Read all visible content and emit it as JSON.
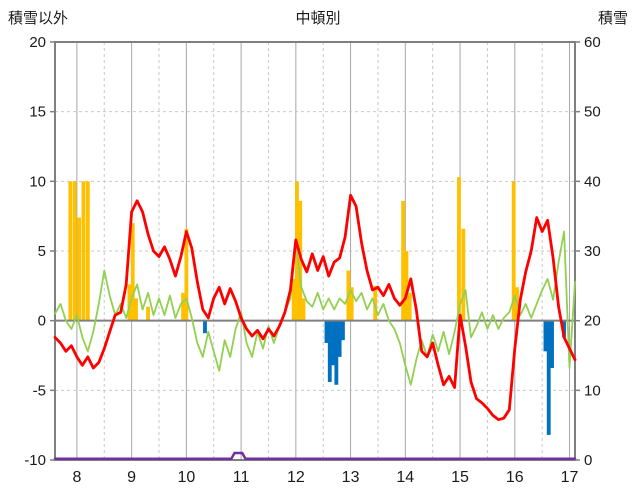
{
  "chart_data": {
    "type": "line",
    "title": "中頓別",
    "left_axis": {
      "label": "積雪以外",
      "min": -10,
      "max": 20,
      "ticks": [
        20,
        15,
        10,
        5,
        0,
        -5,
        -10
      ]
    },
    "right_axis": {
      "label": "積雪",
      "min": 0,
      "max": 60,
      "ticks": [
        60,
        50,
        40,
        30,
        20,
        10,
        0
      ]
    },
    "x_axis": {
      "min": 7.6,
      "max": 17.1,
      "ticks": [
        8,
        9,
        10,
        11,
        12,
        13,
        14,
        15,
        16,
        17
      ],
      "labels": [
        "8",
        "9",
        "10",
        "11",
        "12",
        "13",
        "14",
        "15",
        "16",
        "17"
      ],
      "minor_ticks": [
        8.5,
        9.5,
        10.5,
        11.5,
        12.5,
        13.5,
        14.5,
        15.5,
        16.5
      ]
    },
    "style": {
      "grid_major": "#A6A6A6",
      "grid_minor": "#C9C9C9",
      "zero_line": "#808080",
      "frame": "#7F7F7F",
      "text": "#1A1A1A",
      "background": "#FFFFFF"
    },
    "bar_width": 0.07,
    "series": [
      {
        "name": "orange-bars",
        "type": "bar",
        "color": "#FFC000",
        "points": [
          [
            7.88,
            10
          ],
          [
            7.96,
            10
          ],
          [
            8.04,
            7.4
          ],
          [
            8.12,
            10
          ],
          [
            8.2,
            10
          ],
          [
            8.96,
            2.6
          ],
          [
            9.02,
            7.0
          ],
          [
            9.08,
            1.6
          ],
          [
            9.3,
            1.0
          ],
          [
            9.94,
            2.0
          ],
          [
            10.0,
            6.6
          ],
          [
            11.96,
            3.0
          ],
          [
            12.02,
            10
          ],
          [
            12.08,
            8.6
          ],
          [
            12.14,
            1.6
          ],
          [
            12.96,
            3.6
          ],
          [
            13.02,
            2.4
          ],
          [
            13.45,
            2.5
          ],
          [
            13.96,
            8.6
          ],
          [
            14.02,
            5.0
          ],
          [
            14.08,
            2.0
          ],
          [
            14.98,
            10.3
          ],
          [
            15.06,
            6.6
          ],
          [
            15.98,
            10.0
          ],
          [
            16.04,
            2.4
          ]
        ]
      },
      {
        "name": "blue-bars",
        "type": "bar",
        "color": "#0070C0",
        "points": [
          [
            10.34,
            -0.9
          ],
          [
            12.56,
            -1.6
          ],
          [
            12.62,
            -4.4
          ],
          [
            12.68,
            -3.2
          ],
          [
            12.74,
            -4.6
          ],
          [
            12.8,
            -2.6
          ],
          [
            12.86,
            -1.4
          ],
          [
            16.56,
            -2.2
          ],
          [
            16.62,
            -8.2
          ],
          [
            16.68,
            -3.4
          ],
          [
            16.9,
            -1.2
          ]
        ]
      },
      {
        "name": "green-line",
        "type": "line",
        "color": "#92D050",
        "width": 1.8,
        "x_start": 7.6,
        "x_step": 0.1,
        "values": [
          0.5,
          1.2,
          0.0,
          -0.6,
          0.4,
          -1.2,
          -2.2,
          -0.8,
          1.2,
          3.6,
          1.8,
          0.4,
          1.2,
          0.2,
          1.6,
          2.6,
          0.8,
          2.0,
          0.4,
          1.6,
          0.4,
          1.8,
          0.2,
          1.2,
          1.6,
          0.2,
          -1.6,
          -2.6,
          -0.8,
          -2.2,
          -3.6,
          -1.4,
          -2.6,
          -0.6,
          0.6,
          -1.6,
          -2.6,
          -0.8,
          -2.0,
          -0.4,
          -1.6,
          -0.4,
          0.6,
          1.6,
          5.6,
          2.4,
          1.4,
          1.0,
          2.0,
          0.8,
          1.6,
          0.8,
          1.6,
          1.2,
          2.2,
          1.4,
          2.0,
          0.8,
          1.6,
          0.4,
          1.2,
          0.0,
          -0.6,
          -1.6,
          -3.2,
          -4.6,
          -2.8,
          -1.4,
          -2.6,
          -1.0,
          -2.2,
          -0.8,
          -2.4,
          -0.8,
          1.2,
          2.2,
          -1.2,
          -0.4,
          0.6,
          -0.6,
          0.4,
          -0.6,
          0.2,
          0.6,
          1.8,
          0.4,
          1.2,
          0.2,
          1.2,
          2.2,
          3.0,
          1.5,
          4.2,
          6.4,
          -3.4,
          2.8
        ]
      },
      {
        "name": "purple-line",
        "type": "line",
        "color": "#7030A0",
        "width": 2.5,
        "points": [
          [
            7.6,
            -10
          ],
          [
            10.82,
            -10
          ],
          [
            10.88,
            -9.5
          ],
          [
            11.02,
            -9.5
          ],
          [
            11.08,
            -10
          ],
          [
            17.1,
            -10
          ]
        ]
      },
      {
        "name": "red-line",
        "type": "line",
        "color": "#FF0000",
        "width": 2.8,
        "x_start": 7.6,
        "x_step": 0.1,
        "values": [
          -1.2,
          -1.6,
          -2.2,
          -1.8,
          -2.6,
          -3.2,
          -2.6,
          -3.4,
          -3.0,
          -2.0,
          -0.8,
          0.4,
          0.6,
          2.6,
          7.8,
          8.6,
          7.8,
          6.2,
          5.0,
          4.6,
          5.3,
          4.4,
          3.2,
          4.6,
          6.4,
          5.2,
          2.8,
          0.8,
          0.2,
          1.6,
          2.4,
          1.2,
          2.3,
          1.4,
          0.2,
          -0.6,
          -1.1,
          -0.7,
          -1.3,
          -0.6,
          -1.1,
          -0.4,
          0.6,
          2.2,
          5.8,
          4.4,
          3.5,
          4.8,
          3.6,
          4.6,
          3.2,
          4.2,
          4.5,
          6.0,
          9.0,
          8.2,
          5.6,
          3.6,
          2.2,
          2.4,
          1.8,
          2.6,
          1.6,
          1.1,
          1.6,
          3.0,
          0.8,
          -2.2,
          -2.6,
          -1.6,
          -3.2,
          -4.6,
          -4.0,
          -4.8,
          0.4,
          -1.8,
          -4.4,
          -5.6,
          -5.9,
          -6.3,
          -6.8,
          -7.1,
          -7.0,
          -6.4,
          -2.0,
          1.5,
          3.5,
          5.0,
          7.4,
          6.4,
          7.2,
          4.5,
          1.0,
          -1.2,
          -2.0,
          -2.8
        ]
      }
    ]
  }
}
